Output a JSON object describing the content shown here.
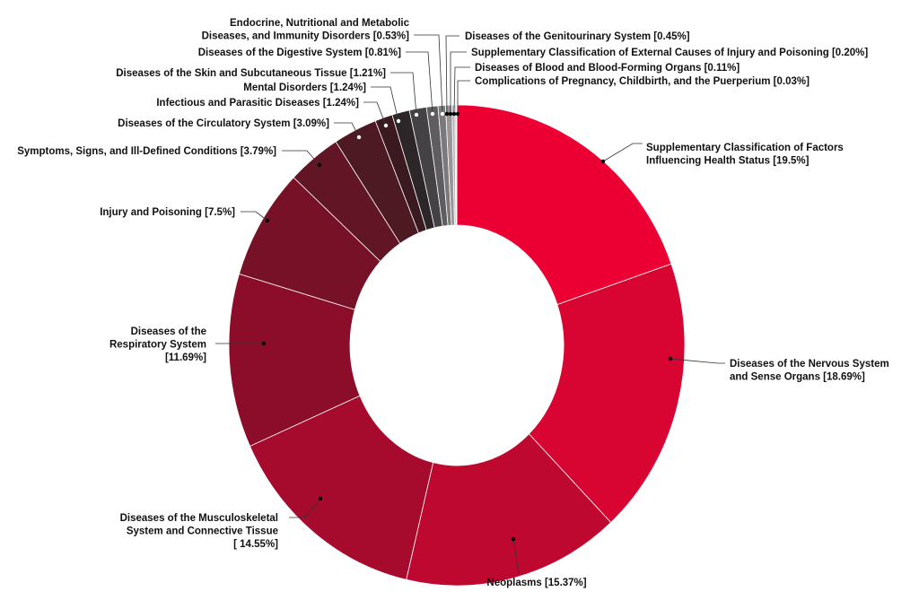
{
  "chart_data": {
    "type": "pie",
    "donut": true,
    "title": "",
    "slices": [
      {
        "label": [
          "Supplementary Classification of Factors",
          "Influencing Health Status [19.5%]"
        ],
        "value": 19.5,
        "color": "#EC0034"
      },
      {
        "label": [
          "Diseases of the Nervous System",
          "and Sense Organs [18.69%]"
        ],
        "value": 18.69,
        "color": "#D80532"
      },
      {
        "label": [
          "Neoplasms [15.37%]"
        ],
        "value": 15.37,
        "color": "#BF0830"
      },
      {
        "label": [
          "Diseases of the Musculoskeletal",
          "System and Connective Tissue",
          "[ 14.55%]"
        ],
        "value": 14.55,
        "color": "#A60A2D"
      },
      {
        "label": [
          "Diseases of the",
          "Respiratory System",
          "[11.69%]"
        ],
        "value": 11.69,
        "color": "#8C0D2A"
      },
      {
        "label": [
          "Injury and Poisoning [7.5%]"
        ],
        "value": 7.5,
        "color": "#771127"
      },
      {
        "label": [
          "Symptoms, Signs, and Ill-Defined Conditions [3.79%]"
        ],
        "value": 3.79,
        "color": "#621525"
      },
      {
        "label": [
          "Diseases of the Circulatory System [3.09%]"
        ],
        "value": 3.09,
        "color": "#4D1922"
      },
      {
        "label": [
          "Infectious and Parasitic Diseases [1.24%]"
        ],
        "value": 1.24,
        "color": "#3A1A20"
      },
      {
        "label": [
          "Mental Disorders [1.24%]"
        ],
        "value": 1.24,
        "color": "#2C2628"
      },
      {
        "label": [
          "Diseases of the Skin and Subcutaneous Tissue [1.21%]"
        ],
        "value": 1.21,
        "color": "#444244"
      },
      {
        "label": [
          "Diseases of the Digestive System [0.81%]"
        ],
        "value": 0.81,
        "color": "#5F5D5F"
      },
      {
        "label": [
          "Endocrine, Nutritional and Metabolic",
          "Diseases, and Immunity Disorders [0.53%]"
        ],
        "value": 0.53,
        "color": "#7B797B"
      },
      {
        "label": [
          "Diseases of the Genitourinary System [0.45%]"
        ],
        "value": 0.45,
        "color": "#989698"
      },
      {
        "label": [
          "Supplementary Classification of External Causes of Injury and Poisoning [0.20%]"
        ],
        "value": 0.2,
        "color": "#B4B2B4"
      },
      {
        "label": [
          "Diseases of Blood and Blood-Forming Organs [0.11%]"
        ],
        "value": 0.11,
        "color": "#CBC9CB"
      },
      {
        "label": [
          "Complications of Pregnancy, Childbirth, and the Puerperium [0.03%]"
        ],
        "value": 0.03,
        "color": "#DDDBDD"
      }
    ]
  }
}
